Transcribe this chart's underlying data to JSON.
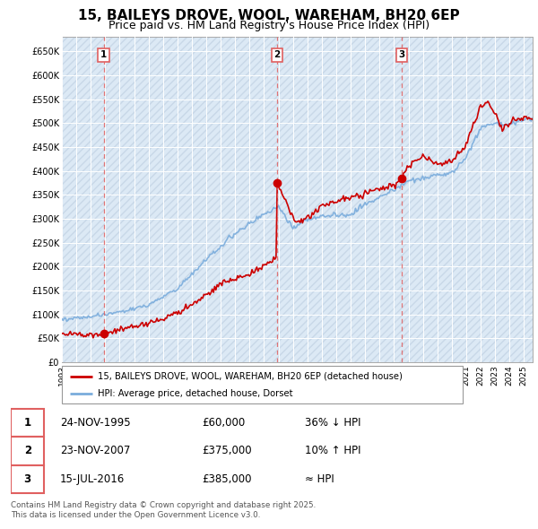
{
  "title": "15, BAILEYS DROVE, WOOL, WAREHAM, BH20 6EP",
  "subtitle": "Price paid vs. HM Land Registry's House Price Index (HPI)",
  "title_fontsize": 11,
  "subtitle_fontsize": 9,
  "ylim": [
    0,
    680000
  ],
  "yticks": [
    0,
    50000,
    100000,
    150000,
    200000,
    250000,
    300000,
    350000,
    400000,
    450000,
    500000,
    550000,
    600000,
    650000
  ],
  "ytick_labels": [
    "£0",
    "£50K",
    "£100K",
    "£150K",
    "£200K",
    "£250K",
    "£300K",
    "£350K",
    "£400K",
    "£450K",
    "£500K",
    "£550K",
    "£600K",
    "£650K"
  ],
  "xlim_start": 1993.0,
  "xlim_end": 2025.6,
  "hpi_color": "#7aacdc",
  "price_color": "#cc0000",
  "purchase_marker_color": "#cc0000",
  "purchase_dates": [
    1995.9,
    2007.9,
    2016.54
  ],
  "purchase_prices": [
    60000,
    375000,
    385000
  ],
  "purchase_labels": [
    "1",
    "2",
    "3"
  ],
  "vline_color": "#e06060",
  "legend_entries": [
    "15, BAILEYS DROVE, WOOL, WAREHAM, BH20 6EP (detached house)",
    "HPI: Average price, detached house, Dorset"
  ],
  "table_data": [
    [
      "1",
      "24-NOV-1995",
      "£60,000",
      "36% ↓ HPI"
    ],
    [
      "2",
      "23-NOV-2007",
      "£375,000",
      "10% ↑ HPI"
    ],
    [
      "3",
      "15-JUL-2016",
      "£385,000",
      "≈ HPI"
    ]
  ],
  "footnote": "Contains HM Land Registry data © Crown copyright and database right 2025.\nThis data is licensed under the Open Government Licence v3.0.",
  "background_color": "#ffffff",
  "plot_bg_color": "#dce9f5",
  "grid_color": "#ffffff",
  "hatch_color": "#c8d8e8"
}
